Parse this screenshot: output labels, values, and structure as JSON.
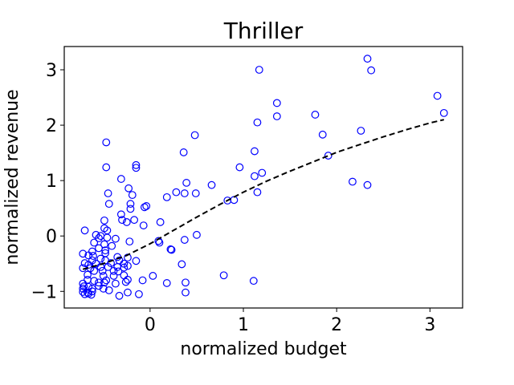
{
  "chart_data": {
    "type": "scatter",
    "title": "Thriller",
    "xlabel": "normalized budget",
    "ylabel": "normalized revenue",
    "xlim": [
      -0.92,
      3.35
    ],
    "ylim": [
      -1.3,
      3.42
    ],
    "xticks": [
      0,
      1,
      2,
      3
    ],
    "yticks": [
      -1,
      0,
      1,
      2,
      3
    ],
    "grid": false,
    "colors": {
      "points": "#0000ff",
      "trend": "#000000"
    },
    "series": [
      {
        "kind": "points",
        "points": [
          [
            2.33,
            3.2
          ],
          [
            2.37,
            2.99
          ],
          [
            1.17,
            3.0
          ],
          [
            3.08,
            2.53
          ],
          [
            3.15,
            2.22
          ],
          [
            1.36,
            2.4
          ],
          [
            1.36,
            2.16
          ],
          [
            1.77,
            2.19
          ],
          [
            1.15,
            2.05
          ],
          [
            2.26,
            1.9
          ],
          [
            1.85,
            1.83
          ],
          [
            1.12,
            1.53
          ],
          [
            1.91,
            1.45
          ],
          [
            0.48,
            1.82
          ],
          [
            0.36,
            1.51
          ],
          [
            -0.47,
            1.69
          ],
          [
            -0.47,
            1.24
          ],
          [
            -0.15,
            1.28
          ],
          [
            -0.15,
            1.23
          ],
          [
            0.96,
            1.24
          ],
          [
            1.2,
            1.14
          ],
          [
            1.12,
            1.08
          ],
          [
            2.17,
            0.98
          ],
          [
            2.33,
            0.92
          ],
          [
            -0.31,
            1.03
          ],
          [
            0.39,
            0.96
          ],
          [
            0.66,
            0.92
          ],
          [
            1.15,
            0.79
          ],
          [
            0.28,
            0.79
          ],
          [
            0.37,
            0.77
          ],
          [
            0.49,
            0.77
          ],
          [
            0.18,
            0.7
          ],
          [
            0.83,
            0.64
          ],
          [
            0.9,
            0.65
          ],
          [
            -0.23,
            0.86
          ],
          [
            -0.45,
            0.77
          ],
          [
            -0.19,
            0.74
          ],
          [
            -0.44,
            0.58
          ],
          [
            -0.21,
            0.58
          ],
          [
            -0.21,
            0.49
          ],
          [
            -0.04,
            0.54
          ],
          [
            -0.06,
            0.52
          ],
          [
            -0.31,
            0.39
          ],
          [
            -0.3,
            0.29
          ],
          [
            -0.49,
            0.28
          ],
          [
            -0.17,
            0.29
          ],
          [
            -0.07,
            0.19
          ],
          [
            -0.25,
            0.25
          ],
          [
            -0.49,
            0.14
          ],
          [
            -0.46,
            0.1
          ],
          [
            -0.7,
            0.1
          ],
          [
            0.11,
            0.25
          ],
          [
            -0.58,
            0.02
          ],
          [
            -0.53,
            0.0
          ],
          [
            -0.55,
            -0.04
          ],
          [
            -0.46,
            -0.03
          ],
          [
            -0.37,
            -0.05
          ],
          [
            -0.22,
            -0.1
          ],
          [
            0.09,
            -0.09
          ],
          [
            0.1,
            -0.12
          ],
          [
            0.37,
            -0.07
          ],
          [
            0.5,
            0.02
          ],
          [
            0.22,
            -0.24
          ],
          [
            0.23,
            -0.25
          ],
          [
            -0.6,
            -0.12
          ],
          [
            -0.49,
            -0.15
          ],
          [
            -0.41,
            -0.18
          ],
          [
            -0.55,
            -0.22
          ],
          [
            -0.48,
            -0.26
          ],
          [
            -0.62,
            -0.28
          ],
          [
            -0.72,
            -0.32
          ],
          [
            -0.66,
            -0.35
          ],
          [
            -0.61,
            -0.36
          ],
          [
            -0.48,
            -0.31
          ],
          [
            -0.35,
            -0.38
          ],
          [
            -0.24,
            -0.39
          ],
          [
            -0.15,
            -0.45
          ],
          [
            -0.48,
            -0.44
          ],
          [
            -0.53,
            -0.41
          ],
          [
            -0.62,
            -0.44
          ],
          [
            -0.7,
            -0.49
          ],
          [
            -0.66,
            -0.52
          ],
          [
            -0.58,
            -0.5
          ],
          [
            -0.42,
            -0.49
          ],
          [
            -0.33,
            -0.44
          ],
          [
            -0.28,
            -0.5
          ],
          [
            -0.24,
            -0.54
          ],
          [
            -0.35,
            -0.56
          ],
          [
            -0.45,
            -0.56
          ],
          [
            -0.53,
            -0.56
          ],
          [
            -0.64,
            -0.58
          ],
          [
            -0.72,
            -0.58
          ],
          [
            -0.6,
            -0.63
          ],
          [
            -0.51,
            -0.63
          ],
          [
            -0.39,
            -0.63
          ],
          [
            -0.28,
            -0.57
          ],
          [
            -0.34,
            -0.64
          ],
          [
            -0.28,
            -0.71
          ],
          [
            -0.24,
            -0.79
          ],
          [
            -0.39,
            -0.72
          ],
          [
            -0.5,
            -0.72
          ],
          [
            -0.67,
            -0.7
          ],
          [
            -0.67,
            -0.79
          ],
          [
            -0.6,
            -0.81
          ],
          [
            -0.55,
            -0.84
          ],
          [
            -0.49,
            -0.84
          ],
          [
            -0.47,
            -0.8
          ],
          [
            -0.37,
            -0.86
          ],
          [
            -0.26,
            -0.83
          ],
          [
            -0.08,
            -0.8
          ],
          [
            0.03,
            -0.72
          ],
          [
            0.34,
            -0.51
          ],
          [
            0.38,
            -0.84
          ],
          [
            0.18,
            -0.85
          ],
          [
            0.79,
            -0.71
          ],
          [
            1.11,
            -0.81
          ],
          [
            -0.72,
            -0.86
          ],
          [
            -0.71,
            -0.91
          ],
          [
            -0.66,
            -0.92
          ],
          [
            -0.62,
            -0.95
          ],
          [
            -0.55,
            -0.9
          ],
          [
            -0.5,
            -0.95
          ],
          [
            -0.44,
            -0.98
          ],
          [
            -0.72,
            -0.95
          ],
          [
            -0.72,
            -1.01
          ],
          [
            -0.7,
            -1.05
          ],
          [
            -0.66,
            -1.04
          ],
          [
            -0.63,
            -1.06
          ],
          [
            -0.67,
            -1.02
          ],
          [
            -0.62,
            -1.0
          ],
          [
            -0.24,
            -1.02
          ],
          [
            -0.12,
            -1.05
          ],
          [
            -0.33,
            -1.08
          ],
          [
            0.38,
            -1.02
          ]
        ]
      },
      {
        "kind": "trend",
        "points": [
          [
            -0.72,
            -0.6
          ],
          [
            -0.5,
            -0.5
          ],
          [
            -0.25,
            -0.35
          ],
          [
            0,
            -0.14
          ],
          [
            0.25,
            0.1
          ],
          [
            0.5,
            0.34
          ],
          [
            0.75,
            0.57
          ],
          [
            1.0,
            0.79
          ],
          [
            1.25,
            0.99
          ],
          [
            1.5,
            1.17
          ],
          [
            1.75,
            1.34
          ],
          [
            2.0,
            1.51
          ],
          [
            2.25,
            1.65
          ],
          [
            2.5,
            1.79
          ],
          [
            2.75,
            1.92
          ],
          [
            3.0,
            2.04
          ],
          [
            3.15,
            2.1
          ]
        ]
      }
    ]
  }
}
